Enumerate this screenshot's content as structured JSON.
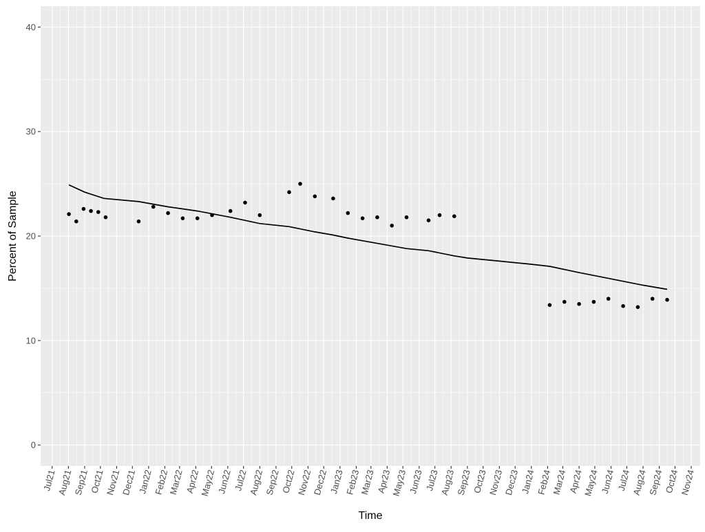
{
  "chart_data": {
    "type": "scatter",
    "title": "",
    "xlabel": "Time",
    "ylabel": "Percent of Sample",
    "ylim": [
      -2,
      42
    ],
    "xlim": [
      "2021-06-09",
      "2024-11-18"
    ],
    "y_ticks": [
      0,
      10,
      20,
      30,
      40
    ],
    "x_ticks": [
      {
        "date": "2021-07-01",
        "label": "Jul21"
      },
      {
        "date": "2021-08-01",
        "label": "Aug21"
      },
      {
        "date": "2021-09-01",
        "label": "Sep21"
      },
      {
        "date": "2021-10-01",
        "label": "Oct21"
      },
      {
        "date": "2021-11-01",
        "label": "Nov21"
      },
      {
        "date": "2021-12-01",
        "label": "Dec21"
      },
      {
        "date": "2022-01-01",
        "label": "Jan22"
      },
      {
        "date": "2022-02-01",
        "label": "Feb22"
      },
      {
        "date": "2022-03-01",
        "label": "Mar22"
      },
      {
        "date": "2022-04-01",
        "label": "Apr22"
      },
      {
        "date": "2022-05-01",
        "label": "May22"
      },
      {
        "date": "2022-06-01",
        "label": "Jun22"
      },
      {
        "date": "2022-07-01",
        "label": "Jul22"
      },
      {
        "date": "2022-08-01",
        "label": "Aug22"
      },
      {
        "date": "2022-09-01",
        "label": "Sep22"
      },
      {
        "date": "2022-10-01",
        "label": "Oct22"
      },
      {
        "date": "2022-11-01",
        "label": "Nov22"
      },
      {
        "date": "2022-12-01",
        "label": "Dec22"
      },
      {
        "date": "2023-01-01",
        "label": "Jan23"
      },
      {
        "date": "2023-02-01",
        "label": "Feb23"
      },
      {
        "date": "2023-03-01",
        "label": "Mar23"
      },
      {
        "date": "2023-04-01",
        "label": "Apr23"
      },
      {
        "date": "2023-05-01",
        "label": "May23"
      },
      {
        "date": "2023-06-01",
        "label": "Jun23"
      },
      {
        "date": "2023-07-01",
        "label": "Jul23"
      },
      {
        "date": "2023-08-01",
        "label": "Aug23"
      },
      {
        "date": "2023-09-01",
        "label": "Sep23"
      },
      {
        "date": "2023-10-01",
        "label": "Oct23"
      },
      {
        "date": "2023-11-01",
        "label": "Nov23"
      },
      {
        "date": "2023-12-01",
        "label": "Dec23"
      },
      {
        "date": "2024-01-01",
        "label": "Jan24"
      },
      {
        "date": "2024-02-01",
        "label": "Feb24"
      },
      {
        "date": "2024-03-01",
        "label": "Mar24"
      },
      {
        "date": "2024-04-01",
        "label": "Apr24"
      },
      {
        "date": "2024-05-01",
        "label": "May24"
      },
      {
        "date": "2024-06-01",
        "label": "Jun24"
      },
      {
        "date": "2024-07-01",
        "label": "Jul24"
      },
      {
        "date": "2024-08-01",
        "label": "Aug24"
      },
      {
        "date": "2024-09-01",
        "label": "Sep24"
      },
      {
        "date": "2024-10-01",
        "label": "Oct24"
      },
      {
        "date": "2024-11-01",
        "label": "Nov24"
      }
    ],
    "grid": true,
    "legend": "none",
    "colors": {
      "panel": "#ebebeb",
      "grid": "#ffffff",
      "marks": "#000000"
    },
    "series": [
      {
        "kind": "points",
        "points": [
          {
            "x": "2021-08-02",
            "y": 22.1
          },
          {
            "x": "2021-08-16",
            "y": 21.4
          },
          {
            "x": "2021-08-30",
            "y": 22.6
          },
          {
            "x": "2021-09-13",
            "y": 22.4
          },
          {
            "x": "2021-09-27",
            "y": 22.3
          },
          {
            "x": "2021-10-11",
            "y": 21.8
          },
          {
            "x": "2021-12-13",
            "y": 21.4
          },
          {
            "x": "2022-01-10",
            "y": 22.8
          },
          {
            "x": "2022-02-07",
            "y": 22.2
          },
          {
            "x": "2022-03-07",
            "y": 21.7
          },
          {
            "x": "2022-04-04",
            "y": 21.7
          },
          {
            "x": "2022-05-02",
            "y": 22.0
          },
          {
            "x": "2022-06-06",
            "y": 22.4
          },
          {
            "x": "2022-07-04",
            "y": 23.2
          },
          {
            "x": "2022-08-01",
            "y": 22.0
          },
          {
            "x": "2022-09-26",
            "y": 24.2
          },
          {
            "x": "2022-10-17",
            "y": 25.0
          },
          {
            "x": "2022-11-14",
            "y": 23.8
          },
          {
            "x": "2022-12-19",
            "y": 23.6
          },
          {
            "x": "2023-01-16",
            "y": 22.2
          },
          {
            "x": "2023-02-13",
            "y": 21.7
          },
          {
            "x": "2023-03-13",
            "y": 21.8
          },
          {
            "x": "2023-04-10",
            "y": 21.0
          },
          {
            "x": "2023-05-08",
            "y": 21.8
          },
          {
            "x": "2023-06-19",
            "y": 21.5
          },
          {
            "x": "2023-07-10",
            "y": 22.0
          },
          {
            "x": "2023-08-07",
            "y": 21.9
          },
          {
            "x": "2024-02-05",
            "y": 13.4
          },
          {
            "x": "2024-03-04",
            "y": 13.7
          },
          {
            "x": "2024-04-01",
            "y": 13.5
          },
          {
            "x": "2024-04-29",
            "y": 13.7
          },
          {
            "x": "2024-05-27",
            "y": 14.0
          },
          {
            "x": "2024-06-24",
            "y": 13.3
          },
          {
            "x": "2024-07-22",
            "y": 13.2
          },
          {
            "x": "2024-08-19",
            "y": 14.0
          },
          {
            "x": "2024-09-16",
            "y": 13.9
          }
        ]
      },
      {
        "kind": "line",
        "points": [
          {
            "x": "2021-08-02",
            "y": 24.9
          },
          {
            "x": "2021-09-01",
            "y": 24.2
          },
          {
            "x": "2021-10-08",
            "y": 23.6
          },
          {
            "x": "2021-12-13",
            "y": 23.3
          },
          {
            "x": "2022-02-07",
            "y": 22.8
          },
          {
            "x": "2022-04-04",
            "y": 22.4
          },
          {
            "x": "2022-06-06",
            "y": 21.8
          },
          {
            "x": "2022-08-01",
            "y": 21.2
          },
          {
            "x": "2022-09-26",
            "y": 20.9
          },
          {
            "x": "2022-11-14",
            "y": 20.4
          },
          {
            "x": "2022-12-19",
            "y": 20.1
          },
          {
            "x": "2023-01-16",
            "y": 19.8
          },
          {
            "x": "2023-03-13",
            "y": 19.3
          },
          {
            "x": "2023-05-08",
            "y": 18.8
          },
          {
            "x": "2023-06-19",
            "y": 18.6
          },
          {
            "x": "2023-08-07",
            "y": 18.1
          },
          {
            "x": "2023-09-01",
            "y": 17.9
          },
          {
            "x": "2023-11-01",
            "y": 17.6
          },
          {
            "x": "2024-01-01",
            "y": 17.3
          },
          {
            "x": "2024-02-05",
            "y": 17.1
          },
          {
            "x": "2024-04-01",
            "y": 16.5
          },
          {
            "x": "2024-06-01",
            "y": 15.9
          },
          {
            "x": "2024-08-01",
            "y": 15.3
          },
          {
            "x": "2024-09-16",
            "y": 14.9
          }
        ]
      }
    ]
  }
}
